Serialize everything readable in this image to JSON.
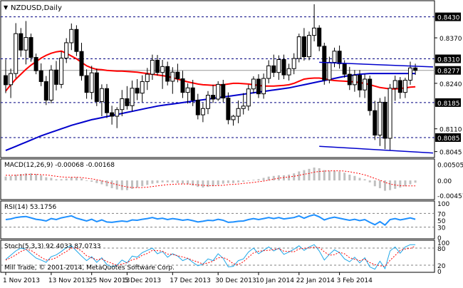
{
  "window": {
    "title": "NZDUSD,Daily",
    "menu_icon": "triangle-down-icon",
    "copyright": "Mill Trade, © 2001-2014, MetaQuotes Software Corp."
  },
  "colors": {
    "background": "#ffffff",
    "grid": "#000080",
    "price_label_bg": "#000000",
    "price_label_text": "#ffffff",
    "ma_fast": "#ff0000",
    "ma_slow": "#0000cc",
    "trendline": "#0000cc",
    "macd_histogram": "#c0c0c0",
    "macd_signal": "#ff0000",
    "rsi": "#1e90ff",
    "stoch_main": "#1ea7e8",
    "stoch_signal": "#ff0000",
    "candle": "#000000"
  },
  "chart_data": [
    {
      "type": "candlestick",
      "name": "price",
      "symbol": "NZDUSD",
      "timeframe": "Daily",
      "ylim": [
        0.8032,
        0.8472
      ],
      "price_levels": [
        {
          "value": 0.843,
          "label": "0.8430"
        },
        {
          "value": 0.831,
          "label": "0.8310"
        },
        {
          "value": 0.8185,
          "label": "0.8185"
        },
        {
          "value": 0.8085,
          "label": "0.8085"
        }
      ],
      "axis_ticks": [
        "0.8370",
        "0.8240",
        "0.8110",
        "0.8045"
      ],
      "current_price": {
        "value": 0.8277,
        "label": "0.8277"
      },
      "x_labels": [
        "1 Nov 2013",
        "13 Nov 2013",
        "25 Nov 2013",
        "5 Dec 2013",
        "17 Dec 2013",
        "30 Dec 2013",
        "10 Jan 2014",
        "22 Jan 2014",
        "3 Feb 2014"
      ],
      "candles": [
        [
          0.8262,
          0.8308,
          0.8212,
          0.8236
        ],
        [
          0.8236,
          0.8282,
          0.8198,
          0.8268
        ],
        [
          0.8268,
          0.8412,
          0.8255,
          0.8382
        ],
        [
          0.8382,
          0.8398,
          0.8316,
          0.8335
        ],
        [
          0.8335,
          0.8418,
          0.8294,
          0.8371
        ],
        [
          0.8371,
          0.8382,
          0.8302,
          0.8314
        ],
        [
          0.8314,
          0.8325,
          0.8266,
          0.8276
        ],
        [
          0.8276,
          0.8297,
          0.8232,
          0.8245
        ],
        [
          0.8245,
          0.8261,
          0.8178,
          0.8192
        ],
        [
          0.8192,
          0.8292,
          0.8183,
          0.8278
        ],
        [
          0.8278,
          0.8304,
          0.822,
          0.8237
        ],
        [
          0.8237,
          0.8331,
          0.8226,
          0.8312
        ],
        [
          0.8312,
          0.8369,
          0.8298,
          0.8356
        ],
        [
          0.8356,
          0.8411,
          0.8335,
          0.8394
        ],
        [
          0.8394,
          0.8406,
          0.8318,
          0.8331
        ],
        [
          0.8331,
          0.8356,
          0.8248,
          0.8262
        ],
        [
          0.8262,
          0.828,
          0.8196,
          0.8214
        ],
        [
          0.8214,
          0.829,
          0.8194,
          0.827
        ],
        [
          0.827,
          0.8282,
          0.8175,
          0.8188
        ],
        [
          0.8188,
          0.8237,
          0.8146,
          0.8225
        ],
        [
          0.8225,
          0.8238,
          0.8141,
          0.8156
        ],
        [
          0.8156,
          0.8176,
          0.8122,
          0.8146
        ],
        [
          0.8146,
          0.8172,
          0.8112,
          0.8165
        ],
        [
          0.8165,
          0.8221,
          0.8146,
          0.8196
        ],
        [
          0.8196,
          0.8232,
          0.8165,
          0.8176
        ],
        [
          0.8176,
          0.8248,
          0.816,
          0.8226
        ],
        [
          0.8226,
          0.8252,
          0.8192,
          0.8212
        ],
        [
          0.8212,
          0.8263,
          0.8186,
          0.8245
        ],
        [
          0.8245,
          0.8284,
          0.8221,
          0.8266
        ],
        [
          0.8266,
          0.8322,
          0.825,
          0.8306
        ],
        [
          0.8306,
          0.8321,
          0.8262,
          0.8271
        ],
        [
          0.8271,
          0.8307,
          0.8224,
          0.8288
        ],
        [
          0.8288,
          0.8302,
          0.8234,
          0.8246
        ],
        [
          0.8246,
          0.8286,
          0.821,
          0.8272
        ],
        [
          0.8272,
          0.8296,
          0.8243,
          0.8253
        ],
        [
          0.8253,
          0.8276,
          0.8198,
          0.8214
        ],
        [
          0.8214,
          0.824,
          0.8182,
          0.8227
        ],
        [
          0.8227,
          0.825,
          0.8175,
          0.8192
        ],
        [
          0.8192,
          0.821,
          0.8137,
          0.815
        ],
        [
          0.815,
          0.8183,
          0.8129,
          0.8168
        ],
        [
          0.8168,
          0.8218,
          0.8152,
          0.8206
        ],
        [
          0.8206,
          0.8236,
          0.8184,
          0.8195
        ],
        [
          0.8195,
          0.8246,
          0.819,
          0.8237
        ],
        [
          0.8237,
          0.825,
          0.8186,
          0.8198
        ],
        [
          0.8198,
          0.8214,
          0.8123,
          0.8136
        ],
        [
          0.8136,
          0.815,
          0.8119,
          0.8146
        ],
        [
          0.8146,
          0.8191,
          0.8126,
          0.8168
        ],
        [
          0.8168,
          0.8212,
          0.8151,
          0.8175
        ],
        [
          0.8175,
          0.8236,
          0.8162,
          0.8224
        ],
        [
          0.8224,
          0.826,
          0.8211,
          0.8252
        ],
        [
          0.8252,
          0.8266,
          0.8198,
          0.821
        ],
        [
          0.821,
          0.8268,
          0.8196,
          0.8254
        ],
        [
          0.8254,
          0.8306,
          0.824,
          0.829
        ],
        [
          0.829,
          0.8322,
          0.8258,
          0.8271
        ],
        [
          0.8271,
          0.832,
          0.825,
          0.8308
        ],
        [
          0.8308,
          0.8322,
          0.8252,
          0.8264
        ],
        [
          0.8264,
          0.8296,
          0.8248,
          0.8282
        ],
        [
          0.8282,
          0.8326,
          0.8266,
          0.8311
        ],
        [
          0.8311,
          0.8382,
          0.83,
          0.8373
        ],
        [
          0.8373,
          0.8398,
          0.8305,
          0.8316
        ],
        [
          0.8316,
          0.8388,
          0.8306,
          0.8377
        ],
        [
          0.8377,
          0.8466,
          0.836,
          0.8398
        ],
        [
          0.8398,
          0.8406,
          0.8332,
          0.8346
        ],
        [
          0.8346,
          0.8356,
          0.8236,
          0.825
        ],
        [
          0.825,
          0.8316,
          0.824,
          0.83
        ],
        [
          0.83,
          0.8342,
          0.8286,
          0.8332
        ],
        [
          0.8332,
          0.8348,
          0.8282,
          0.8296
        ],
        [
          0.8296,
          0.8306,
          0.8256,
          0.8266
        ],
        [
          0.8266,
          0.8287,
          0.8221,
          0.8236
        ],
        [
          0.8236,
          0.8278,
          0.8216,
          0.8263
        ],
        [
          0.8263,
          0.8278,
          0.82,
          0.8221
        ],
        [
          0.8221,
          0.8266,
          0.8198,
          0.8252
        ],
        [
          0.8252,
          0.8262,
          0.8148,
          0.8162
        ],
        [
          0.8162,
          0.819,
          0.8078,
          0.8092
        ],
        [
          0.8092,
          0.8198,
          0.8061,
          0.8186
        ],
        [
          0.8186,
          0.8202,
          0.8052,
          0.8083
        ],
        [
          0.8083,
          0.8238,
          0.8048,
          0.8226
        ],
        [
          0.8226,
          0.8262,
          0.819,
          0.8248
        ],
        [
          0.8248,
          0.8258,
          0.8196,
          0.8214
        ],
        [
          0.8214,
          0.8256,
          0.8198,
          0.8249
        ],
        [
          0.8249,
          0.8302,
          0.8236,
          0.8284
        ],
        [
          0.8284,
          0.8296,
          0.8264,
          0.8277
        ]
      ],
      "ma_fast_period_note": "",
      "ma_fast": [
        0.8218,
        0.8236,
        0.8252,
        0.8266,
        0.828,
        0.8292,
        0.8302,
        0.8312,
        0.832,
        0.8326,
        0.833,
        0.8332,
        0.8326,
        0.8318,
        0.831,
        0.83,
        0.829,
        0.8284,
        0.828,
        0.8279,
        0.8277,
        0.8276,
        0.8275,
        0.8275,
        0.8274,
        0.8273,
        0.8272,
        0.827,
        0.8268,
        0.8266,
        0.8264,
        0.8262,
        0.826,
        0.8256,
        0.8252,
        0.8248,
        0.8244,
        0.8241,
        0.8238,
        0.8236,
        0.8235,
        0.8234,
        0.8235,
        0.8236,
        0.8238,
        0.824,
        0.824,
        0.8239,
        0.8238,
        0.8236,
        0.8234,
        0.8232,
        0.8232,
        0.8232,
        0.8233,
        0.8234,
        0.8236,
        0.824,
        0.8246,
        0.8252,
        0.8254,
        0.8255,
        0.8255,
        0.8253,
        0.825,
        0.8248,
        0.8247,
        0.8246,
        0.8245,
        0.8244,
        0.8242,
        0.824,
        0.8236,
        0.8232,
        0.8228,
        0.8226,
        0.8224,
        0.8224,
        0.8225,
        0.8227,
        0.8229,
        0.823
      ],
      "ma_slow": [
        0.8048,
        0.8054,
        0.806,
        0.8066,
        0.8072,
        0.8078,
        0.8084,
        0.809,
        0.8095,
        0.81,
        0.8105,
        0.811,
        0.8115,
        0.812,
        0.8124,
        0.8128,
        0.8132,
        0.8136,
        0.8139,
        0.8142,
        0.8145,
        0.8148,
        0.8151,
        0.8154,
        0.8157,
        0.816,
        0.8163,
        0.8166,
        0.8169,
        0.8172,
        0.8175,
        0.8177,
        0.8179,
        0.8181,
        0.8183,
        0.8185,
        0.8187,
        0.8189,
        0.8191,
        0.8193,
        0.8195,
        0.8197,
        0.8199,
        0.8201,
        0.8203,
        0.8205,
        0.8207,
        0.8209,
        0.8211,
        0.8213,
        0.8215,
        0.8217,
        0.8219,
        0.8221,
        0.8223,
        0.8225,
        0.8227,
        0.823,
        0.8233,
        0.8236,
        0.8239,
        0.8242,
        0.8245,
        0.8248,
        0.8251,
        0.8254,
        0.8257,
        0.826,
        0.8262,
        0.8264,
        0.8266,
        0.8267,
        0.8268,
        0.8268,
        0.8268,
        0.8268,
        0.8268,
        0.8268,
        0.8268,
        0.8268,
        0.8268,
        0.8268
      ],
      "trendlines": [
        {
          "from": [
            62,
            0.83
          ],
          "to": [
            86,
            0.8287
          ]
        },
        {
          "from": [
            62,
            0.806
          ],
          "to": [
            86,
            0.8041
          ]
        }
      ]
    },
    {
      "type": "histogram",
      "name": "macd",
      "label": "MACD(12,26,9) -0.00068 -0.00168",
      "ylim": [
        -0.0055,
        0.006
      ],
      "axis_ticks": [
        {
          "value": 0.00505,
          "label": "0.00505"
        },
        {
          "value": 0.0,
          "label": "0.00"
        },
        {
          "value": -0.00457,
          "label": "-0.00457"
        }
      ],
      "histogram": [
        0.0012,
        0.0014,
        0.0018,
        0.002,
        0.0022,
        0.0022,
        0.002,
        0.0016,
        0.001,
        0.0008,
        0.0004,
        0.0004,
        0.0006,
        0.001,
        0.001,
        0.0006,
        0.0,
        -0.0004,
        -0.0008,
        -0.0012,
        -0.0018,
        -0.0024,
        -0.0028,
        -0.003,
        -0.003,
        -0.0026,
        -0.0022,
        -0.0018,
        -0.0014,
        -0.001,
        -0.0008,
        -0.0006,
        -0.0006,
        -0.0006,
        -0.0008,
        -0.001,
        -0.0012,
        -0.0016,
        -0.002,
        -0.0022,
        -0.002,
        -0.0018,
        -0.0014,
        -0.001,
        -0.0008,
        -0.0008,
        -0.0006,
        -0.0004,
        -0.0002,
        0.0002,
        0.0004,
        0.0008,
        0.0012,
        0.0014,
        0.0016,
        0.0016,
        0.0018,
        0.0022,
        0.0028,
        0.0032,
        0.0036,
        0.004,
        0.0038,
        0.0032,
        0.003,
        0.003,
        0.0028,
        0.0024,
        0.0018,
        0.0014,
        0.0008,
        0.0004,
        -0.0006,
        -0.0018,
        -0.0024,
        -0.0032,
        -0.003,
        -0.0026,
        -0.0022,
        -0.0018,
        -0.0012,
        -0.0007
      ],
      "signal": [
        0.0016,
        0.0016,
        0.0016,
        0.0017,
        0.0018,
        0.0019,
        0.0019,
        0.0018,
        0.0017,
        0.0015,
        0.0013,
        0.0011,
        0.001,
        0.001,
        0.001,
        0.0009,
        0.0007,
        0.0005,
        0.0002,
        -0.0001,
        -0.0005,
        -0.0009,
        -0.0013,
        -0.0017,
        -0.002,
        -0.0022,
        -0.0022,
        -0.0022,
        -0.0021,
        -0.0019,
        -0.0017,
        -0.0015,
        -0.0013,
        -0.0012,
        -0.0011,
        -0.0011,
        -0.0011,
        -0.0012,
        -0.0014,
        -0.0015,
        -0.0016,
        -0.0016,
        -0.0016,
        -0.0015,
        -0.0013,
        -0.0012,
        -0.0011,
        -0.0009,
        -0.0008,
        -0.0006,
        -0.0004,
        -0.0002,
        0.0001,
        0.0004,
        0.0007,
        0.0009,
        0.0011,
        0.0013,
        0.0016,
        0.0019,
        0.0022,
        0.0026,
        0.0028,
        0.0029,
        0.003,
        0.003,
        0.003,
        0.0029,
        0.0027,
        0.0024,
        0.0021,
        0.0017,
        0.0012,
        0.0006,
        0.0001,
        -0.0006,
        -0.0011,
        -0.0014,
        -0.0016,
        -0.0017,
        -0.0017,
        -0.0017
      ]
    },
    {
      "type": "line",
      "name": "rsi",
      "label": "RSI(14) 53.1756",
      "ylim": [
        0,
        100
      ],
      "levels": [
        70,
        30
      ],
      "axis_ticks": [
        "100",
        "70",
        "50",
        "30",
        "0"
      ],
      "values": [
        52,
        54,
        58,
        60,
        61,
        57,
        53,
        51,
        48,
        55,
        52,
        57,
        60,
        63,
        56,
        52,
        48,
        53,
        46,
        51,
        45,
        44,
        46,
        48,
        46,
        51,
        50,
        53,
        55,
        58,
        54,
        56,
        52,
        55,
        53,
        50,
        52,
        49,
        45,
        47,
        50,
        49,
        53,
        50,
        44,
        45,
        47,
        48,
        52,
        55,
        52,
        55,
        58,
        55,
        58,
        54,
        56,
        58,
        63,
        56,
        62,
        66,
        60,
        51,
        56,
        59,
        56,
        53,
        50,
        53,
        49,
        52,
        44,
        37,
        46,
        36,
        52,
        55,
        51,
        54,
        57,
        53
      ]
    },
    {
      "type": "line",
      "name": "stochastic",
      "label": "Stoch(5,3,3) 92.4033 87.0733",
      "ylim": [
        0,
        100
      ],
      "levels": [
        80,
        20
      ],
      "axis_ticks": [
        "100",
        "80",
        "20",
        "0"
      ],
      "main": [
        40,
        55,
        70,
        80,
        76,
        60,
        45,
        38,
        30,
        50,
        56,
        68,
        82,
        88,
        70,
        52,
        36,
        50,
        30,
        46,
        22,
        14,
        20,
        38,
        28,
        52,
        48,
        64,
        72,
        80,
        60,
        68,
        48,
        60,
        52,
        36,
        44,
        30,
        18,
        24,
        42,
        36,
        60,
        44,
        14,
        16,
        36,
        42,
        66,
        80,
        60,
        72,
        84,
        70,
        80,
        58,
        66,
        76,
        88,
        72,
        84,
        92,
        70,
        38,
        58,
        74,
        64,
        42,
        32,
        48,
        28,
        46,
        14,
        6,
        34,
        8,
        70,
        84,
        62,
        84,
        92,
        92
      ],
      "signal": [
        38,
        46,
        56,
        68,
        75,
        72,
        60,
        48,
        38,
        40,
        46,
        58,
        68,
        80,
        80,
        70,
        53,
        46,
        39,
        42,
        33,
        27,
        19,
        24,
        29,
        39,
        43,
        55,
        61,
        72,
        71,
        69,
        59,
        58,
        53,
        49,
        44,
        37,
        31,
        24,
        28,
        34,
        46,
        47,
        39,
        25,
        22,
        32,
        48,
        63,
        69,
        71,
        72,
        75,
        78,
        69,
        68,
        67,
        77,
        79,
        81,
        83,
        82,
        67,
        55,
        57,
        65,
        60,
        46,
        41,
        36,
        41,
        29,
        22,
        18,
        16,
        37,
        54,
        72,
        77,
        79,
        87
      ]
    }
  ]
}
